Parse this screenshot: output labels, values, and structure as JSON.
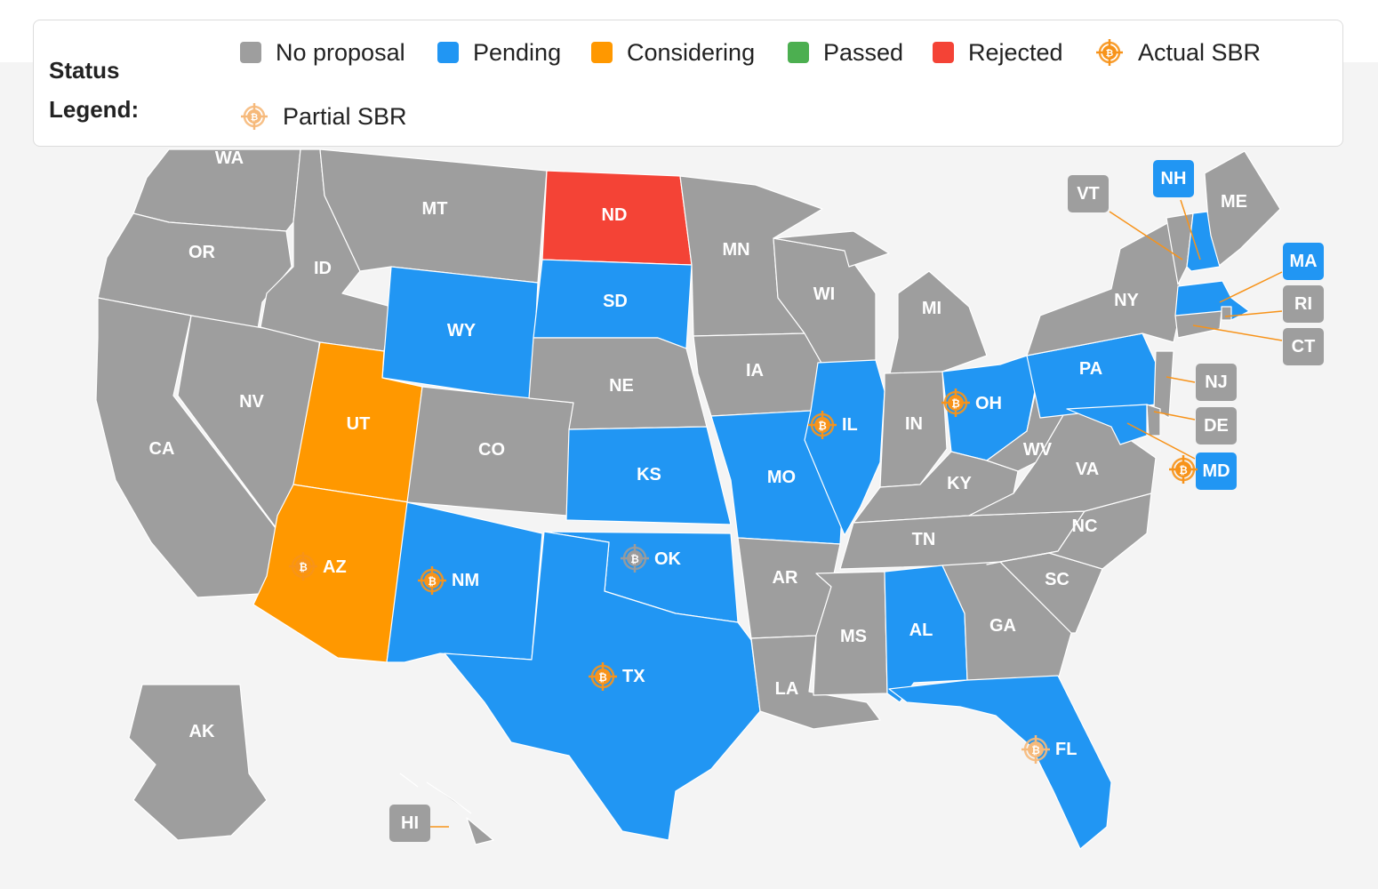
{
  "legend": {
    "title": "Status Legend:",
    "items": [
      {
        "label": "No proposal",
        "color": "#9e9e9e",
        "kind": "swatch"
      },
      {
        "label": "Pending",
        "color": "#2196f3",
        "kind": "swatch"
      },
      {
        "label": "Considering",
        "color": "#ff9800",
        "kind": "swatch"
      },
      {
        "label": "Passed",
        "color": "#4caf50",
        "kind": "swatch"
      },
      {
        "label": "Rejected",
        "color": "#f44336",
        "kind": "swatch"
      },
      {
        "label": "Actual SBR",
        "icon": "bitcoin-icon",
        "color": "#f7931a",
        "kind": "icon"
      },
      {
        "label": "Partial SBR",
        "icon": "bitcoin-icon",
        "color": "#f6b97a",
        "kind": "icon"
      }
    ]
  },
  "status_colors": {
    "none": "#9e9e9e",
    "pending": "#2196f3",
    "considering": "#ff9800",
    "passed": "#4caf50",
    "rejected": "#f44336"
  },
  "icon_colors": {
    "actual": "#f7931a",
    "partial": "#f6b97a",
    "gray": "#9b9b9b"
  },
  "states": [
    {
      "abbr": "WA",
      "status": "none"
    },
    {
      "abbr": "OR",
      "status": "none"
    },
    {
      "abbr": "CA",
      "status": "none"
    },
    {
      "abbr": "NV",
      "status": "none"
    },
    {
      "abbr": "ID",
      "status": "none"
    },
    {
      "abbr": "MT",
      "status": "none"
    },
    {
      "abbr": "WY",
      "status": "pending"
    },
    {
      "abbr": "UT",
      "status": "considering"
    },
    {
      "abbr": "AZ",
      "status": "considering",
      "sbr": "actual"
    },
    {
      "abbr": "CO",
      "status": "none"
    },
    {
      "abbr": "NM",
      "status": "pending",
      "sbr": "actual"
    },
    {
      "abbr": "ND",
      "status": "rejected"
    },
    {
      "abbr": "SD",
      "status": "pending"
    },
    {
      "abbr": "NE",
      "status": "none"
    },
    {
      "abbr": "KS",
      "status": "pending"
    },
    {
      "abbr": "OK",
      "status": "pending",
      "sbr": "gray"
    },
    {
      "abbr": "TX",
      "status": "pending",
      "sbr": "actual"
    },
    {
      "abbr": "MN",
      "status": "none"
    },
    {
      "abbr": "IA",
      "status": "none"
    },
    {
      "abbr": "MO",
      "status": "pending"
    },
    {
      "abbr": "AR",
      "status": "none"
    },
    {
      "abbr": "LA",
      "status": "none"
    },
    {
      "abbr": "WI",
      "status": "none"
    },
    {
      "abbr": "IL",
      "status": "pending",
      "sbr": "actual"
    },
    {
      "abbr": "MI",
      "status": "none"
    },
    {
      "abbr": "IN",
      "status": "none"
    },
    {
      "abbr": "OH",
      "status": "pending",
      "sbr": "actual"
    },
    {
      "abbr": "KY",
      "status": "none"
    },
    {
      "abbr": "TN",
      "status": "none"
    },
    {
      "abbr": "MS",
      "status": "none"
    },
    {
      "abbr": "AL",
      "status": "pending"
    },
    {
      "abbr": "GA",
      "status": "none"
    },
    {
      "abbr": "FL",
      "status": "pending",
      "sbr": "partial"
    },
    {
      "abbr": "SC",
      "status": "none"
    },
    {
      "abbr": "NC",
      "status": "none"
    },
    {
      "abbr": "VA",
      "status": "none"
    },
    {
      "abbr": "WV",
      "status": "none"
    },
    {
      "abbr": "PA",
      "status": "pending"
    },
    {
      "abbr": "NY",
      "status": "none"
    },
    {
      "abbr": "ME",
      "status": "none"
    },
    {
      "abbr": "AK",
      "status": "none"
    },
    {
      "abbr": "VT",
      "status": "none"
    },
    {
      "abbr": "NH",
      "status": "pending"
    },
    {
      "abbr": "MA",
      "status": "pending"
    },
    {
      "abbr": "RI",
      "status": "none"
    },
    {
      "abbr": "CT",
      "status": "none"
    },
    {
      "abbr": "NJ",
      "status": "none"
    },
    {
      "abbr": "DE",
      "status": "none"
    },
    {
      "abbr": "MD",
      "status": "pending",
      "sbr": "actual"
    },
    {
      "abbr": "HI",
      "status": "none"
    }
  ]
}
